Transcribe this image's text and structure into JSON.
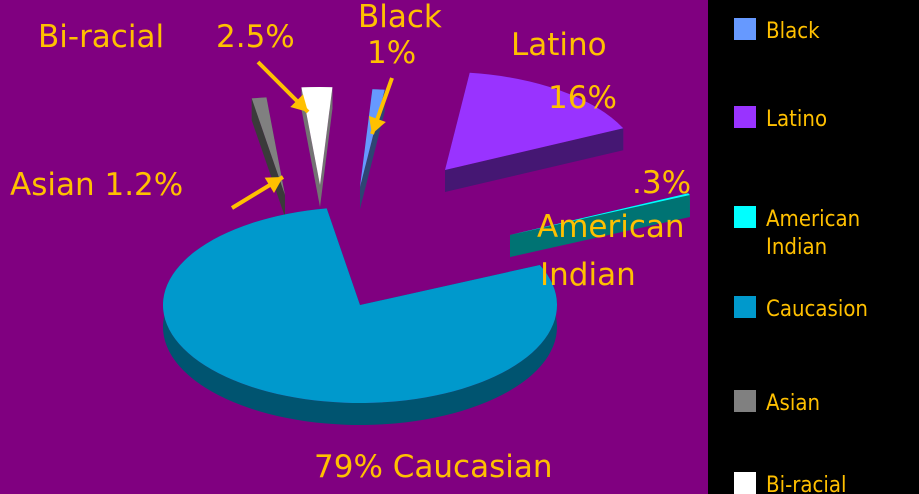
{
  "chart_data": {
    "type": "pie",
    "categories": [
      "Black",
      "Latino",
      "American Indian",
      "Caucasion",
      "Asian",
      "Bi-racial"
    ],
    "values": [
      1,
      16,
      0.3,
      79,
      1.2,
      2.5
    ],
    "colors": {
      "Black": "#6699FF",
      "Latino": "#9933FF",
      "American Indian": "#00FFFF",
      "Caucasion": "#0099CC",
      "Asian": "#808080",
      "Bi-racial": "#FFFFFF"
    },
    "legend_position": "right",
    "labels": {
      "biracial": "Bi-racial",
      "biracial_pct": "2.5%",
      "black": "Black",
      "black_pct": "1%",
      "latino": "Latino",
      "latino_pct": "16%",
      "asian": "Asian 1.2%",
      "amind_pct": ".3%",
      "amind_1": "American",
      "amind_2": "Indian",
      "caucasian": "79%  Caucasian"
    },
    "legend": [
      {
        "label": "Black",
        "color": "#6699FF"
      },
      {
        "label": "Latino",
        "color": "#9933FF"
      },
      {
        "label": "American Indian",
        "color": "#00FFFF"
      },
      {
        "label": "Caucasion",
        "color": "#0099CC"
      },
      {
        "label": "Asian",
        "color": "#808080"
      },
      {
        "label": "Bi-racial",
        "color": "#FFFFFF"
      }
    ]
  },
  "colors": {
    "background": "#800080",
    "legend_background": "#000000",
    "label_text": "#FFC000",
    "arrow": "#FFC000"
  }
}
